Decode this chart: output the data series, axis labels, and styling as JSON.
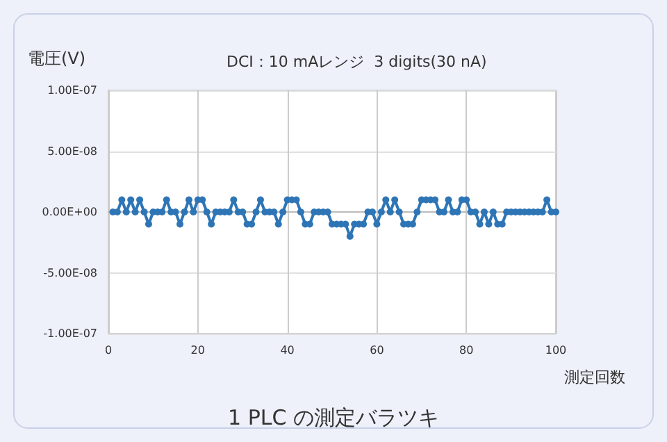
{
  "chart_data": {
    "type": "line",
    "title": "DCI：10 mAレンジ  3 digits(30 nA)",
    "ylabel": "電圧(V)",
    "xlabel": "測定回数",
    "annotations": [
      "1 PLC の測定バラツキ"
    ],
    "x": [
      1,
      2,
      3,
      4,
      5,
      6,
      7,
      8,
      9,
      10,
      11,
      12,
      13,
      14,
      15,
      16,
      17,
      18,
      19,
      20,
      21,
      22,
      23,
      24,
      25,
      26,
      27,
      28,
      29,
      30,
      31,
      32,
      33,
      34,
      35,
      36,
      37,
      38,
      39,
      40,
      41,
      42,
      43,
      44,
      45,
      46,
      47,
      48,
      49,
      50,
      51,
      52,
      53,
      54,
      55,
      56,
      57,
      58,
      59,
      60,
      61,
      62,
      63,
      64,
      65,
      66,
      67,
      68,
      69,
      70,
      71,
      72,
      73,
      74,
      75,
      76,
      77,
      78,
      79,
      80,
      81,
      82,
      83,
      84,
      85,
      86,
      87,
      88,
      89,
      90,
      91,
      92,
      93,
      94,
      95,
      96,
      97,
      98,
      99,
      100
    ],
    "series": [
      {
        "color": "#2e75b6",
        "values": [
          0,
          0,
          1e-08,
          0,
          1e-08,
          0,
          1e-08,
          0,
          -1e-08,
          0,
          0,
          0,
          1e-08,
          0,
          0,
          -1e-08,
          0,
          1e-08,
          0,
          1e-08,
          1e-08,
          0,
          -1e-08,
          0,
          0,
          0,
          0,
          1e-08,
          0,
          0,
          -1e-08,
          -1e-08,
          0,
          1e-08,
          0,
          0,
          0,
          -1e-08,
          0,
          1e-08,
          1e-08,
          1e-08,
          0,
          -1e-08,
          -1e-08,
          0,
          0,
          0,
          0,
          -1e-08,
          -1e-08,
          -1e-08,
          -1e-08,
          -2e-08,
          -1e-08,
          -1e-08,
          -1e-08,
          0,
          0,
          -1e-08,
          0,
          1e-08,
          0,
          1e-08,
          0,
          -1e-08,
          -1e-08,
          -1e-08,
          0,
          1e-08,
          1e-08,
          1e-08,
          1e-08,
          0,
          0,
          1e-08,
          0,
          0,
          1e-08,
          1e-08,
          0,
          0,
          -1e-08,
          0,
          -1e-08,
          0,
          -1e-08,
          -1e-08,
          0,
          0,
          0,
          0,
          0,
          0,
          0,
          0,
          0,
          1e-08,
          0,
          0
        ]
      }
    ],
    "xlim": [
      0,
      100
    ],
    "xticks": [
      0,
      20,
      40,
      60,
      80,
      100
    ],
    "ylim": [
      -1e-07,
      1e-07
    ],
    "yticks": [
      {
        "value": -1e-07,
        "label": "-1.00E-07"
      },
      {
        "value": -5e-08,
        "label": "-5.00E-08"
      },
      {
        "value": 0,
        "label": "0.00E+00"
      },
      {
        "value": 5e-08,
        "label": "5.00E-08"
      },
      {
        "value": 1e-07,
        "label": "1.00E-07"
      }
    ],
    "grid": true,
    "marker": "circle",
    "line_style": "solid"
  }
}
